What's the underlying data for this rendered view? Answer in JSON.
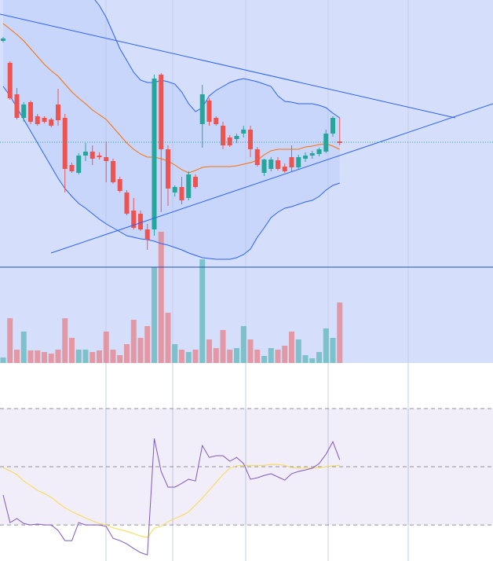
{
  "chart_data": [
    {
      "type": "candlestick",
      "ylim": [
        0,
        462
      ],
      "up_color": "#26a69a",
      "down_color": "#ef5350",
      "open": [
        410,
        382,
        342,
        312,
        332,
        314,
        312,
        310,
        329,
        312,
        252,
        242,
        264,
        269,
        264,
        262,
        257,
        234,
        217,
        194,
        190,
        170,
        170,
        367,
        272,
        217,
        224,
        210,
        237,
        304,
        334,
        312,
        302,
        287,
        285,
        292,
        297,
        272,
        242,
        247,
        258,
        250,
        262,
        249,
        260,
        264,
        266,
        269,
        292,
        282
      ],
      "high": [
        415,
        384,
        350,
        332,
        334,
        317,
        314,
        312,
        349,
        317,
        255,
        267,
        280,
        277,
        268,
        282,
        260,
        237,
        220,
        210,
        194,
        177,
        367,
        369,
        277,
        226,
        237,
        244,
        240,
        354,
        337,
        314,
        307,
        290,
        292,
        302,
        302,
        275,
        260,
        262,
        262,
        254,
        277,
        265,
        268,
        270,
        274,
        297,
        314,
        312
      ],
      "low": [
        408,
        335,
        310,
        307,
        304,
        302,
        305,
        300,
        302,
        217,
        242,
        240,
        257,
        252,
        259,
        230,
        228,
        217,
        188,
        170,
        168,
        144,
        162,
        192,
        200,
        212,
        202,
        207,
        222,
        274,
        302,
        302,
        272,
        275,
        280,
        287,
        262,
        250,
        238,
        244,
        245,
        242,
        244,
        246,
        256,
        260,
        263,
        267,
        288,
        277
      ],
      "close": [
        413,
        337,
        312,
        329,
        307,
        304,
        307,
        302,
        309,
        247,
        244,
        264,
        269,
        260,
        262,
        257,
        230,
        219,
        190,
        172,
        170,
        157,
        362,
        272,
        222,
        224,
        207,
        240,
        224,
        342,
        307,
        304,
        277,
        277,
        289,
        297,
        272,
        252,
        259,
        259,
        247,
        244,
        249,
        262,
        264,
        267,
        272,
        292,
        312,
        280
      ],
      "volume": [
        7,
        57,
        17,
        40,
        16,
        16,
        14,
        12,
        17,
        57,
        32,
        17,
        17,
        14,
        16,
        40,
        17,
        10,
        24,
        55,
        32,
        47,
        122,
        167,
        64,
        24,
        17,
        14,
        17,
        132,
        30,
        19,
        42,
        17,
        19,
        47,
        30,
        17,
        9,
        19,
        17,
        22,
        40,
        30,
        10,
        6,
        14,
        44,
        32,
        77
      ],
      "bands": [
        {
          "color": "#2962ff",
          "values": [
            620,
            610,
            600,
            590,
            580,
            570,
            560,
            545,
            530,
            520,
            505,
            490,
            478,
            466,
            455,
            440,
            420,
            400,
            385,
            370,
            360,
            357,
            357,
            360,
            358,
            355,
            345,
            330,
            320,
            325,
            340,
            347,
            352,
            357,
            360,
            362,
            360,
            358,
            355,
            352,
            340,
            333,
            332,
            330,
            330,
            330,
            328,
            325,
            318,
            312
          ]
        },
        {
          "color": "#ff6d00",
          "values": [
            432,
            425,
            418,
            410,
            400,
            390,
            380,
            372,
            365,
            355,
            345,
            337,
            330,
            322,
            316,
            310,
            300,
            290,
            280,
            272,
            266,
            262,
            262,
            260,
            257,
            252,
            246,
            242,
            245,
            249,
            250,
            250,
            250,
            250,
            251,
            253,
            255,
            258,
            265,
            270,
            272,
            272,
            272,
            272,
            275,
            276,
            278,
            279,
            276,
            272
          ]
        },
        {
          "color": "#2962ff",
          "values": [
            352,
            340,
            325,
            310,
            295,
            280,
            265,
            250,
            235,
            222,
            212,
            203,
            197,
            190,
            183,
            177,
            172,
            167,
            162,
            160,
            158,
            157,
            155,
            152,
            150,
            147,
            144,
            140,
            137,
            134,
            133,
            132,
            132,
            132,
            134,
            138,
            145,
            160,
            172,
            185,
            192,
            197,
            199,
            202,
            205,
            207,
            212,
            220,
            226,
            229
          ]
        }
      ]
    },
    {
      "type": "line",
      "ylim": [
        17.6,
        85.4
      ],
      "bands": [
        70,
        50,
        30
      ],
      "series": [
        {
          "color": "#7e57c2",
          "values": [
            40.3,
            30.8,
            32.2,
            30.5,
            30,
            30.3,
            30,
            30,
            28.1,
            24.6,
            24.6,
            30.8,
            30,
            30,
            30,
            29.5,
            25.4,
            24.6,
            23.5,
            21.9,
            20.5,
            19.7,
            59.7,
            48.4,
            43,
            43,
            44.3,
            45.7,
            45.1,
            57.3,
            53.2,
            53.8,
            53.8,
            51.9,
            53.2,
            51.1,
            45.7,
            46.2,
            47,
            47.6,
            46.5,
            45.4,
            47.6,
            48.4,
            48.9,
            49.5,
            51.1,
            54.3,
            58.6,
            52.4
          ]
        },
        {
          "color": "#f7d94c",
          "values": [
            49.7,
            48.6,
            47.3,
            45.1,
            43.5,
            41.9,
            40.8,
            39.5,
            37.6,
            35.9,
            34.6,
            33.5,
            32.4,
            31.4,
            30.5,
            30,
            29,
            28.4,
            27.8,
            27,
            26.2,
            25.7,
            28.9,
            29.5,
            31.1,
            32.2,
            33.2,
            34.5,
            36.8,
            39.2,
            41.9,
            44.6,
            47.3,
            49.5,
            50.3,
            50.5,
            50.5,
            50.5,
            50.5,
            50.8,
            50.8,
            50.5,
            49.7,
            49.5,
            49.5,
            49.5,
            49.7,
            50,
            50.3,
            50.5
          ]
        }
      ]
    }
  ]
}
